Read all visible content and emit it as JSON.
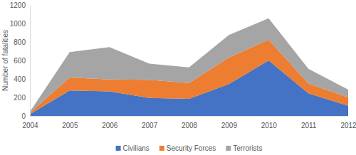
{
  "chart_data": {
    "type": "area",
    "stacked": true,
    "grid": false,
    "legend": "bottom",
    "y_label": "Number of fatalities",
    "x": [
      2004,
      2005,
      2006,
      2007,
      2008,
      2009,
      2010,
      2011,
      2012
    ],
    "xlim": [
      2004,
      2012
    ],
    "xticks": [
      2004,
      2005,
      2006,
      2007,
      2008,
      2009,
      2010,
      2011,
      2012
    ],
    "ylim": [
      0,
      1200
    ],
    "yticks": [
      0,
      200,
      400,
      600,
      800,
      1000,
      1200
    ],
    "series": [
      {
        "name": "Civilians",
        "color": "#4472c4",
        "values": [
          20,
          275,
          265,
          195,
          185,
          345,
          600,
          245,
          110
        ]
      },
      {
        "name": "Security Forces",
        "color": "#ed7d31",
        "values": [
          15,
          140,
          130,
          195,
          170,
          285,
          225,
          105,
          90
        ]
      },
      {
        "name": "Terrorists",
        "color": "#a5a5a5",
        "values": [
          10,
          275,
          350,
          175,
          170,
          245,
          230,
          160,
          85
        ]
      }
    ]
  }
}
